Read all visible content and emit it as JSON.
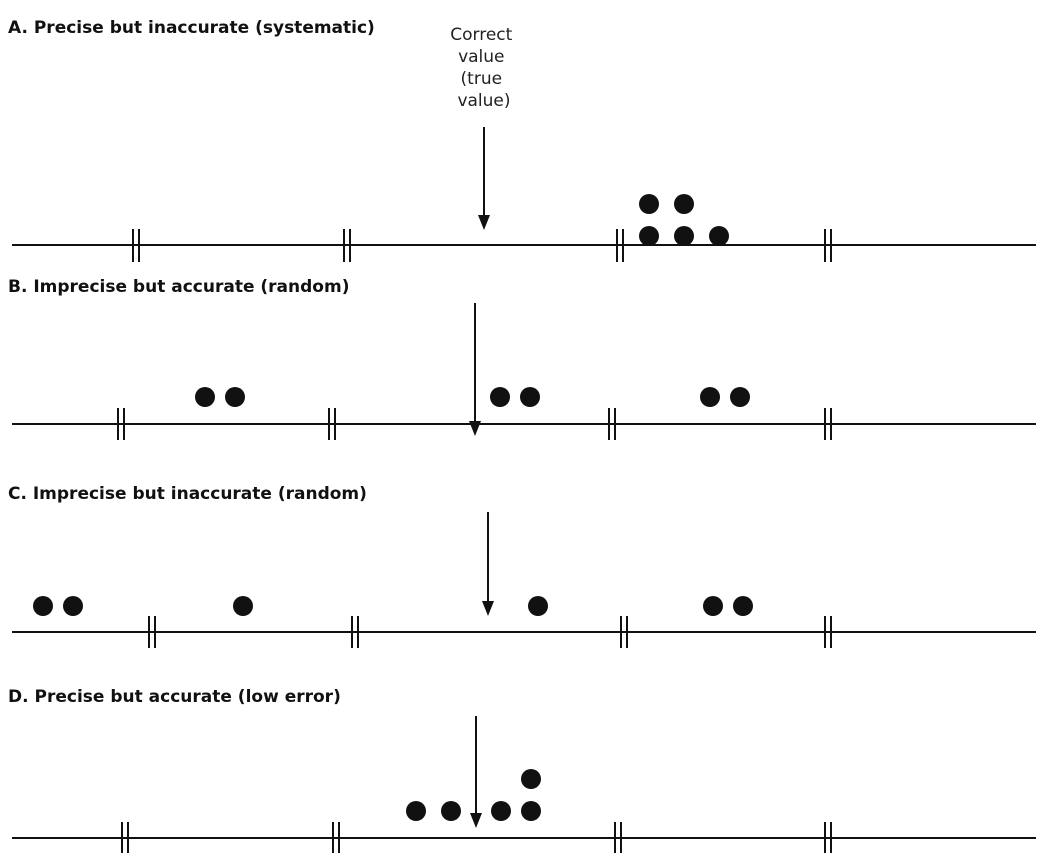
{
  "colors": {
    "ink": "#111111",
    "background": "#ffffff"
  },
  "callout": {
    "lines": [
      "Correct",
      "value",
      "(true",
      "value)"
    ]
  },
  "panels": [
    {
      "id": "a",
      "title": "A. Precise but inaccurate (systematic)",
      "true_value_arrow": true,
      "points": [
        {
          "v": 165,
          "level": 0
        },
        {
          "v": 200,
          "level": 0
        },
        {
          "v": 235,
          "level": 0
        },
        {
          "v": 165,
          "level": 1
        },
        {
          "v": 200,
          "level": 1
        }
      ]
    },
    {
      "id": "b",
      "title": "B. Imprecise but accurate (random)",
      "true_value_arrow": true,
      "points": [
        {
          "v": -270,
          "level": 0
        },
        {
          "v": -240,
          "level": 0
        },
        {
          "v": 25,
          "level": 0
        },
        {
          "v": 55,
          "level": 0
        },
        {
          "v": 235,
          "level": 0
        },
        {
          "v": 265,
          "level": 0
        }
      ]
    },
    {
      "id": "c",
      "title": "C. Imprecise but inaccurate (random)",
      "true_value_arrow": true,
      "points": [
        {
          "v": -445,
          "level": 0
        },
        {
          "v": -415,
          "level": 0
        },
        {
          "v": -245,
          "level": 0
        },
        {
          "v": 50,
          "level": 0
        },
        {
          "v": 225,
          "level": 0
        },
        {
          "v": 255,
          "level": 0
        }
      ]
    },
    {
      "id": "d",
      "title": "D. Precise but accurate (low error)",
      "true_value_arrow": true,
      "points": [
        {
          "v": -60,
          "level": 0
        },
        {
          "v": -25,
          "level": 0
        },
        {
          "v": 25,
          "level": 0
        },
        {
          "v": 55,
          "level": 0
        },
        {
          "v": 55,
          "level": 1
        }
      ]
    }
  ]
}
